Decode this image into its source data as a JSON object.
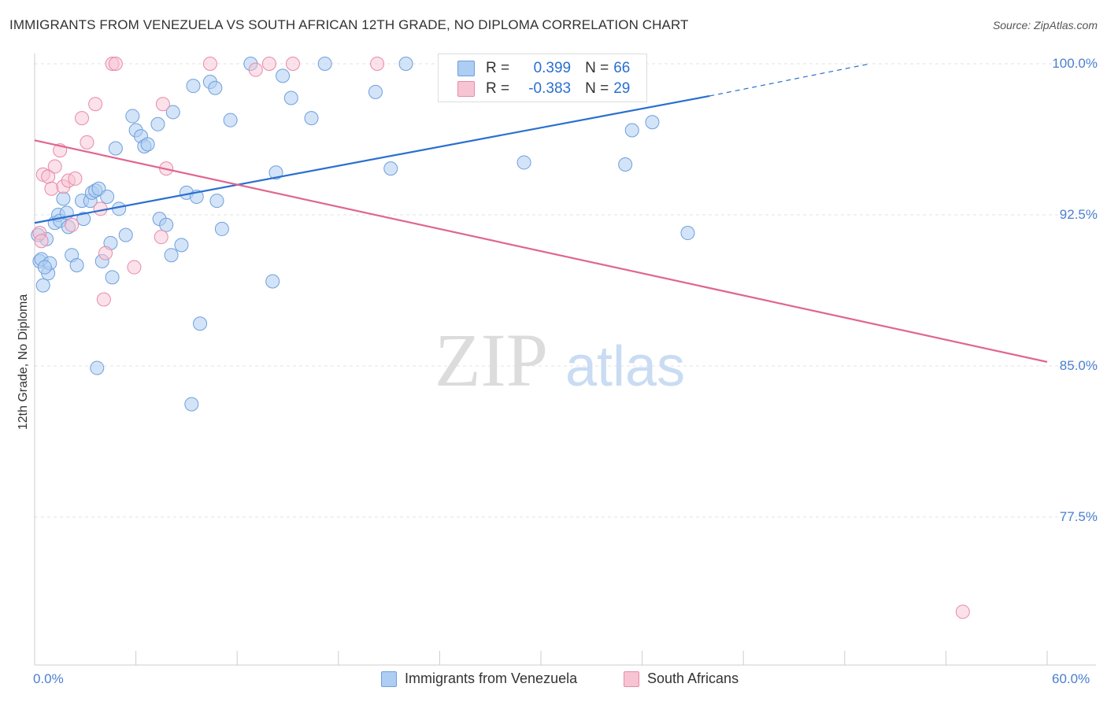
{
  "title": "IMMIGRANTS FROM VENEZUELA VS SOUTH AFRICAN 12TH GRADE, NO DIPLOMA CORRELATION CHART",
  "source": "Source: ZipAtlas.com",
  "watermark": {
    "zip": "ZIP",
    "atlas": "atlas"
  },
  "legend": {
    "rows": [
      {
        "r_label": "R =",
        "r_value": "0.399",
        "n_label": "N =",
        "n_value": "66"
      },
      {
        "r_label": "R =",
        "r_value": "-0.383",
        "n_label": "N =",
        "n_value": "29"
      }
    ]
  },
  "colors": {
    "blue_fill": "#aecdf2",
    "blue_stroke": "#6e9fdc",
    "blue_line": "#2a6fd0",
    "pink_fill": "#f7c4d3",
    "pink_stroke": "#e88aa8",
    "pink_line": "#e0668e",
    "tick_text": "#4a7fd0",
    "grid": "#e3e3e3"
  },
  "chart_data": {
    "type": "scatter",
    "title": "IMMIGRANTS FROM VENEZUELA VS SOUTH AFRICAN 12TH GRADE, NO DIPLOMA CORRELATION CHART",
    "xlabel": "",
    "ylabel": "12th Grade, No Diploma",
    "xlim": [
      0,
      60
    ],
    "ylim": [
      71.0,
      100.8
    ],
    "x_tick_labels": [
      "0.0%",
      "60.0%"
    ],
    "y_ticks": [
      77.5,
      85.0,
      92.5,
      100.0
    ],
    "y_tick_labels": [
      "77.5%",
      "85.0%",
      "92.5%",
      "100.0%"
    ],
    "grid": "horizontal dashed",
    "legend_position": "top-center",
    "series": [
      {
        "name": "Immigrants from Venezuela",
        "color": "#aecdf2",
        "trend": {
          "x": [
            0,
            40.0
          ],
          "y": [
            92.1,
            98.4
          ],
          "dashed_extension": {
            "x": [
              40.0,
              49.5
            ],
            "y": [
              98.4,
              100.0
            ]
          }
        },
        "points": [
          [
            0.3,
            90.2
          ],
          [
            0.4,
            90.3
          ],
          [
            0.5,
            89.0
          ],
          [
            0.7,
            91.3
          ],
          [
            0.8,
            89.6
          ],
          [
            0.9,
            90.1
          ],
          [
            1.2,
            92.1
          ],
          [
            1.4,
            92.5
          ],
          [
            1.5,
            92.2
          ],
          [
            1.7,
            93.3
          ],
          [
            1.9,
            92.6
          ],
          [
            2.0,
            91.9
          ],
          [
            2.2,
            90.5
          ],
          [
            2.8,
            93.2
          ],
          [
            2.9,
            92.3
          ],
          [
            3.3,
            93.2
          ],
          [
            3.4,
            93.6
          ],
          [
            3.6,
            93.7
          ],
          [
            3.8,
            93.8
          ],
          [
            4.0,
            90.2
          ],
          [
            4.3,
            93.4
          ],
          [
            4.5,
            91.1
          ],
          [
            4.6,
            89.4
          ],
          [
            4.8,
            95.8
          ],
          [
            5.0,
            92.8
          ],
          [
            5.4,
            91.5
          ],
          [
            5.8,
            97.4
          ],
          [
            6.0,
            96.7
          ],
          [
            6.3,
            96.4
          ],
          [
            6.5,
            95.9
          ],
          [
            6.7,
            96.0
          ],
          [
            7.3,
            97.0
          ],
          [
            7.4,
            92.3
          ],
          [
            7.8,
            92.0
          ],
          [
            8.1,
            90.5
          ],
          [
            8.2,
            97.6
          ],
          [
            8.7,
            91.0
          ],
          [
            9.0,
            93.6
          ],
          [
            9.3,
            83.1
          ],
          [
            9.4,
            98.9
          ],
          [
            9.6,
            93.4
          ],
          [
            9.8,
            87.1
          ],
          [
            10.4,
            99.1
          ],
          [
            10.7,
            98.8
          ],
          [
            10.8,
            93.2
          ],
          [
            11.1,
            91.8
          ],
          [
            11.6,
            97.2
          ],
          [
            12.8,
            100.0
          ],
          [
            14.1,
            89.2
          ],
          [
            14.3,
            94.6
          ],
          [
            14.7,
            99.4
          ],
          [
            15.2,
            98.3
          ],
          [
            16.4,
            97.3
          ],
          [
            17.2,
            100.0
          ],
          [
            20.2,
            98.6
          ],
          [
            21.1,
            94.8
          ],
          [
            22.0,
            100.0
          ],
          [
            29.0,
            95.1
          ],
          [
            35.0,
            95.0
          ],
          [
            35.4,
            96.7
          ],
          [
            36.6,
            97.1
          ],
          [
            38.7,
            91.6
          ],
          [
            3.7,
            84.9
          ],
          [
            0.2,
            91.5
          ],
          [
            0.6,
            89.9
          ],
          [
            2.5,
            90.0
          ]
        ]
      },
      {
        "name": "South Africans",
        "color": "#f7c4d3",
        "trend": {
          "x": [
            0,
            60.0
          ],
          "y": [
            96.2,
            85.2
          ]
        },
        "points": [
          [
            0.3,
            91.6
          ],
          [
            0.4,
            91.2
          ],
          [
            0.5,
            94.5
          ],
          [
            0.8,
            94.4
          ],
          [
            1.0,
            93.8
          ],
          [
            1.2,
            94.9
          ],
          [
            1.5,
            95.7
          ],
          [
            1.7,
            93.9
          ],
          [
            2.0,
            94.2
          ],
          [
            2.2,
            92.0
          ],
          [
            2.4,
            94.3
          ],
          [
            2.8,
            97.3
          ],
          [
            3.1,
            96.1
          ],
          [
            3.6,
            98.0
          ],
          [
            3.9,
            92.8
          ],
          [
            4.1,
            88.3
          ],
          [
            4.2,
            90.6
          ],
          [
            4.6,
            100.0
          ],
          [
            4.8,
            100.0
          ],
          [
            5.9,
            89.9
          ],
          [
            7.5,
            91.4
          ],
          [
            7.6,
            98.0
          ],
          [
            7.8,
            94.8
          ],
          [
            10.4,
            100.0
          ],
          [
            13.1,
            99.7
          ],
          [
            13.9,
            100.0
          ],
          [
            15.3,
            100.0
          ],
          [
            20.3,
            100.0
          ],
          [
            55.0,
            72.8
          ]
        ]
      }
    ]
  },
  "bottom_legend": [
    {
      "label": "Immigrants from Venezuela"
    },
    {
      "label": "South Africans"
    }
  ]
}
